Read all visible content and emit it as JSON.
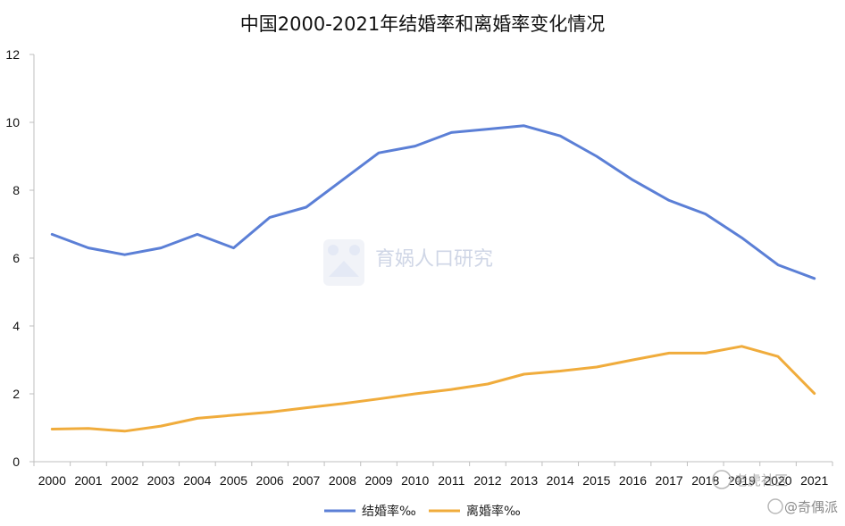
{
  "chart_data": {
    "type": "line",
    "title": "中国2000-2021年结婚率和离婚率变化情况",
    "categories": [
      "2000",
      "2001",
      "2002",
      "2003",
      "2004",
      "2005",
      "2006",
      "2007",
      "2008",
      "2009",
      "2010",
      "2011",
      "2012",
      "2013",
      "2014",
      "2015",
      "2016",
      "2017",
      "2018",
      "2019",
      "2020",
      "2021"
    ],
    "series": [
      {
        "name": "结婚率‰",
        "color": "#5b7fd6",
        "values": [
          6.7,
          6.3,
          6.1,
          6.3,
          6.7,
          6.3,
          7.2,
          7.5,
          8.3,
          9.1,
          9.3,
          9.7,
          9.8,
          9.9,
          9.6,
          9.0,
          8.3,
          7.7,
          7.3,
          6.6,
          5.8,
          5.4
        ]
      },
      {
        "name": "离婚率‰",
        "color": "#f0ac3c",
        "values": [
          0.96,
          0.98,
          0.9,
          1.05,
          1.28,
          1.37,
          1.46,
          1.59,
          1.71,
          1.85,
          2.0,
          2.13,
          2.29,
          2.58,
          2.67,
          2.79,
          3.0,
          3.2,
          3.2,
          3.4,
          3.1,
          2.01
        ]
      }
    ],
    "ylim": [
      0,
      12
    ],
    "yticks": [
      0,
      2,
      4,
      6,
      8,
      10,
      12
    ],
    "grid": false,
    "legend": "bottom"
  },
  "watermarks": {
    "center": "育娲人口研究",
    "corner_a": "老虎社区",
    "corner_b": "@奇偶派"
  }
}
